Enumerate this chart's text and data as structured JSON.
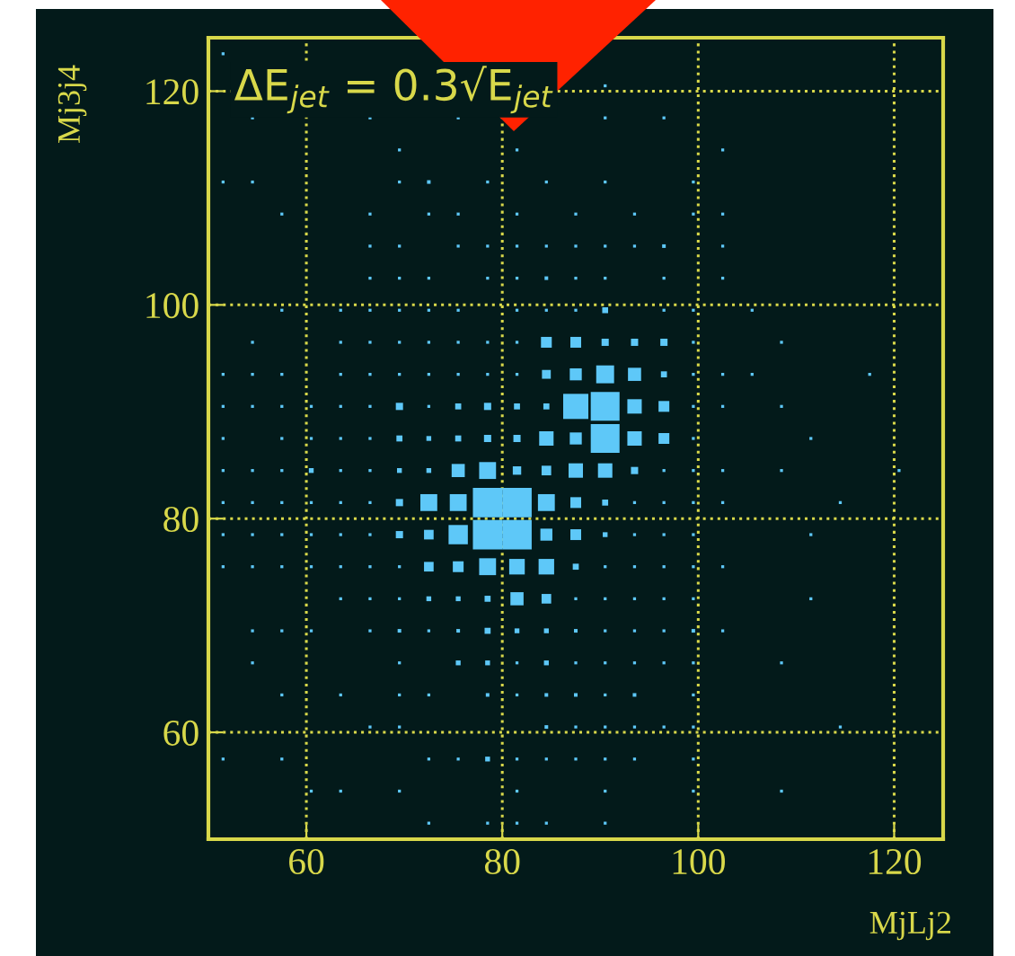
{
  "chart_data": {
    "type": "bubble",
    "title": "ΔE$_{jet}$ = 0.3√E$_{jet}$",
    "xlabel": "MjLj2",
    "ylabel": "Mj3j4",
    "xlim": [
      50,
      125
    ],
    "ylim": [
      50,
      125
    ],
    "xticks": [
      60,
      80,
      100,
      120
    ],
    "yticks": [
      60,
      80,
      100,
      120
    ],
    "grid": true,
    "marker": "square",
    "color": "#5ec8f8",
    "series": [
      {
        "x": [
          51.5
        ],
        "values": [
          123.5
        ],
        "sizes": [
          0.01
        ]
      },
      {
        "x": [
          90.5
        ],
        "values": [
          120.5
        ],
        "sizes": [
          0.01
        ]
      },
      {
        "x": [
          54.5,
          66.5,
          75.5,
          90.5,
          96.5
        ],
        "values": [
          117.5,
          117.5,
          117.5,
          117.5,
          117.5
        ],
        "sizes": [
          0.01,
          0.01,
          0.01,
          0.01,
          0.01
        ]
      },
      {
        "x": [
          69.5,
          81.5,
          102.5
        ],
        "values": [
          114.5,
          114.5,
          114.5
        ],
        "sizes": [
          0.01,
          0.01,
          0.01
        ]
      },
      {
        "x": [
          51.5,
          54.5,
          69.5,
          72.5,
          78.5,
          84.5,
          90.5,
          99.5
        ],
        "values": [
          111.5,
          111.5,
          111.5,
          111.5,
          111.5,
          111.5,
          111.5,
          111.5
        ],
        "sizes": [
          0.01,
          0.01,
          0.01,
          0.015,
          0.01,
          0.01,
          0.01,
          0.01
        ]
      },
      {
        "x": [
          57.5,
          66.5,
          72.5,
          75.5,
          81.5,
          87.5,
          93.5,
          99.5,
          102.5
        ],
        "values": [
          108.5,
          108.5,
          108.5,
          108.5,
          108.5,
          108.5,
          108.5,
          108.5,
          108.5
        ],
        "sizes": [
          0.01,
          0.01,
          0.01,
          0.01,
          0.01,
          0.01,
          0.01,
          0.01,
          0.01
        ]
      },
      {
        "x": [
          66.5,
          69.5,
          75.5,
          78.5,
          81.5,
          84.5,
          87.5,
          90.5,
          93.5,
          96.5,
          102.5
        ],
        "values": [
          105.5,
          105.5,
          105.5,
          105.5,
          105.5,
          105.5,
          105.5,
          105.5,
          105.5,
          105.5,
          105.5
        ],
        "sizes": [
          0.01,
          0.01,
          0.01,
          0.01,
          0.01,
          0.01,
          0.01,
          0.01,
          0.01,
          0.015,
          0.01
        ]
      },
      {
        "x": [
          66.5,
          69.5,
          72.5,
          78.5,
          81.5,
          84.5,
          87.5,
          90.5,
          96.5,
          102.5
        ],
        "values": [
          102.5,
          102.5,
          102.5,
          102.5,
          102.5,
          102.5,
          102.5,
          102.5,
          102.5,
          102.5
        ],
        "sizes": [
          0.01,
          0.01,
          0.01,
          0.01,
          0.01,
          0.015,
          0.01,
          0.01,
          0.01,
          0.01
        ]
      },
      {
        "x": [
          57.5,
          63.5,
          66.5,
          69.5,
          72.5,
          75.5,
          81.5,
          84.5,
          87.5,
          90.5,
          96.5,
          99.5,
          105.5
        ],
        "values": [
          99.5,
          99.5,
          99.5,
          99.5,
          99.5,
          99.5,
          99.5,
          99.5,
          99.5,
          99.5,
          99.5,
          99.5,
          99.5
        ],
        "sizes": [
          0.01,
          0.01,
          0.01,
          0.01,
          0.01,
          0.01,
          0.01,
          0.01,
          0.01,
          0.04,
          0.01,
          0.01,
          0.01
        ]
      },
      {
        "x": [
          54.5,
          63.5,
          66.5,
          69.5,
          72.5,
          75.5,
          78.5,
          81.5,
          84.5,
          87.5,
          90.5,
          93.5,
          96.5,
          99.5,
          108.5
        ],
        "values": [
          96.5,
          96.5,
          96.5,
          96.5,
          96.5,
          96.5,
          96.5,
          96.5,
          96.5,
          96.5,
          96.5,
          96.5,
          96.5,
          96.5,
          96.5
        ],
        "sizes": [
          0.01,
          0.01,
          0.01,
          0.01,
          0.01,
          0.01,
          0.01,
          0.01,
          0.135,
          0.135,
          0.06,
          0.06,
          0.06,
          0.01,
          0.01
        ]
      },
      {
        "x": [
          51.5,
          54.5,
          57.5,
          63.5,
          66.5,
          69.5,
          72.5,
          75.5,
          78.5,
          81.5,
          84.5,
          87.5,
          90.5,
          93.5,
          96.5,
          99.5,
          102.5,
          105.5,
          117.5
        ],
        "values": [
          93.5,
          93.5,
          93.5,
          93.5,
          93.5,
          93.5,
          93.5,
          93.5,
          93.5,
          93.5,
          93.5,
          93.5,
          93.5,
          93.5,
          93.5,
          93.5,
          93.5,
          93.5,
          93.5
        ],
        "sizes": [
          0.01,
          0.01,
          0.01,
          0.01,
          0.01,
          0.01,
          0.01,
          0.01,
          0.01,
          0.01,
          0.09,
          0.167,
          0.37,
          0.2,
          0.042,
          0.01,
          0.01,
          0.01,
          0.01
        ]
      },
      {
        "x": [
          51.5,
          54.5,
          57.5,
          60.5,
          63.5,
          66.5,
          69.5,
          72.5,
          75.5,
          78.5,
          81.5,
          84.5,
          87.5,
          90.5,
          93.5,
          96.5,
          99.5,
          102.5,
          108.5
        ],
        "values": [
          90.5,
          90.5,
          90.5,
          90.5,
          90.5,
          90.5,
          90.5,
          90.5,
          90.5,
          90.5,
          90.5,
          90.5,
          90.5,
          90.5,
          90.5,
          90.5,
          90.5,
          90.5,
          90.5
        ],
        "sizes": [
          0.01,
          0.01,
          0.01,
          0.01,
          0.01,
          0.01,
          0.06,
          0.01,
          0.042,
          0.06,
          0.042,
          0.042,
          0.73,
          0.96,
          0.24,
          0.135,
          0.01,
          0.01,
          0.01
        ]
      },
      {
        "x": [
          51.5,
          57.5,
          60.5,
          63.5,
          66.5,
          69.5,
          72.5,
          75.5,
          78.5,
          81.5,
          84.5,
          87.5,
          90.5,
          93.5,
          96.5,
          99.5,
          111.5
        ],
        "values": [
          87.5,
          87.5,
          87.5,
          87.5,
          87.5,
          87.5,
          87.5,
          87.5,
          87.5,
          87.5,
          87.5,
          87.5,
          87.5,
          87.5,
          87.5,
          87.5,
          87.5
        ],
        "sizes": [
          0.01,
          0.01,
          0.01,
          0.01,
          0.01,
          0.042,
          0.027,
          0.042,
          0.06,
          0.06,
          0.24,
          0.167,
          0.96,
          0.24,
          0.135,
          0.01,
          0.01
        ]
      },
      {
        "x": [
          51.5,
          54.5,
          57.5,
          60.5,
          63.5,
          66.5,
          69.5,
          72.5,
          75.5,
          78.5,
          81.5,
          84.5,
          87.5,
          90.5,
          93.5,
          96.5,
          99.5,
          102.5,
          108.5,
          120.5
        ],
        "values": [
          84.5,
          84.5,
          84.5,
          84.5,
          84.5,
          84.5,
          84.5,
          84.5,
          84.5,
          84.5,
          84.5,
          84.5,
          84.5,
          84.5,
          84.5,
          84.5,
          84.5,
          84.5,
          84.5,
          84.5
        ],
        "sizes": [
          0.01,
          0.01,
          0.01,
          0.027,
          0.01,
          0.01,
          0.027,
          0.027,
          0.2,
          0.33,
          0.082,
          0.107,
          0.24,
          0.24,
          0.06,
          0.01,
          0.01,
          0.01,
          0.01,
          0.01
        ]
      },
      {
        "x": [
          51.5,
          54.5,
          57.5,
          60.5,
          63.5,
          66.5,
          69.5,
          72.5,
          75.5,
          78.5,
          81.5,
          84.5,
          87.5,
          90.5,
          93.5,
          96.5,
          99.5,
          102.5,
          114.5
        ],
        "values": [
          81.5,
          81.5,
          81.5,
          81.5,
          81.5,
          81.5,
          81.5,
          81.5,
          81.5,
          81.5,
          81.5,
          81.5,
          81.5,
          81.5,
          81.5,
          81.5,
          81.5,
          81.5,
          81.5
        ],
        "sizes": [
          0.01,
          0.01,
          0.01,
          0.01,
          0.01,
          0.01,
          0.06,
          0.33,
          0.33,
          1,
          1,
          0.33,
          0.135,
          0.042,
          0.01,
          0.01,
          0.01,
          0.01,
          0.01
        ]
      },
      {
        "x": [
          51.5,
          54.5,
          57.5,
          60.5,
          63.5,
          66.5,
          69.5,
          72.5,
          75.5,
          78.5,
          81.5,
          84.5,
          87.5,
          90.5,
          93.5,
          96.5,
          99.5,
          111.5
        ],
        "values": [
          78.5,
          78.5,
          78.5,
          78.5,
          78.5,
          78.5,
          78.5,
          78.5,
          78.5,
          78.5,
          78.5,
          78.5,
          78.5,
          78.5,
          78.5,
          78.5,
          78.5,
          78.5
        ],
        "sizes": [
          0.01,
          0.01,
          0.01,
          0.01,
          0.01,
          0.01,
          0.06,
          0.107,
          0.43,
          1,
          1,
          0.167,
          0.135,
          0.027,
          0.01,
          0.01,
          0.01,
          0.01
        ]
      },
      {
        "x": [
          51.5,
          54.5,
          57.5,
          60.5,
          63.5,
          66.5,
          69.5,
          72.5,
          75.5,
          78.5,
          81.5,
          84.5,
          87.5,
          90.5,
          93.5,
          96.5,
          99.5,
          102.5
        ],
        "values": [
          75.5,
          75.5,
          75.5,
          75.5,
          75.5,
          75.5,
          75.5,
          75.5,
          75.5,
          75.5,
          75.5,
          75.5,
          75.5,
          75.5,
          75.5,
          75.5,
          75.5,
          75.5
        ],
        "sizes": [
          0.01,
          0.01,
          0.01,
          0.01,
          0.01,
          0.01,
          0.01,
          0.107,
          0.135,
          0.33,
          0.28,
          0.28,
          0.042,
          0.01,
          0.01,
          0.01,
          0.01,
          0.01
        ]
      },
      {
        "x": [
          63.5,
          66.5,
          69.5,
          72.5,
          75.5,
          78.5,
          81.5,
          84.5,
          87.5,
          90.5,
          93.5,
          96.5,
          99.5,
          111.5
        ],
        "values": [
          72.5,
          72.5,
          72.5,
          72.5,
          72.5,
          72.5,
          72.5,
          72.5,
          72.5,
          72.5,
          72.5,
          72.5,
          72.5,
          72.5
        ],
        "sizes": [
          0.01,
          0.01,
          0.01,
          0.027,
          0.027,
          0.042,
          0.2,
          0.107,
          0.01,
          0.01,
          0.01,
          0.01,
          0.01,
          0.01
        ]
      },
      {
        "x": [
          54.5,
          57.5,
          60.5,
          66.5,
          69.5,
          72.5,
          75.5,
          78.5,
          81.5,
          84.5,
          87.5,
          90.5,
          93.5,
          96.5,
          99.5,
          102.5
        ],
        "values": [
          69.5,
          69.5,
          69.5,
          69.5,
          69.5,
          69.5,
          69.5,
          69.5,
          69.5,
          69.5,
          69.5,
          69.5,
          69.5,
          69.5,
          69.5,
          69.5
        ],
        "sizes": [
          0.01,
          0.01,
          0.01,
          0.01,
          0.015,
          0.01,
          0.015,
          0.042,
          0.027,
          0.027,
          0.015,
          0.01,
          0.01,
          0.01,
          0.015,
          0.01
        ]
      },
      {
        "x": [
          54.5,
          69.5,
          75.5,
          78.5,
          81.5,
          84.5,
          87.5,
          90.5,
          93.5,
          96.5,
          99.5,
          108.5
        ],
        "values": [
          66.5,
          66.5,
          66.5,
          66.5,
          66.5,
          66.5,
          66.5,
          66.5,
          66.5,
          66.5,
          66.5,
          66.5
        ],
        "sizes": [
          0.01,
          0.01,
          0.027,
          0.027,
          0.01,
          0.027,
          0.01,
          0.01,
          0.01,
          0.01,
          0.01,
          0.01
        ]
      },
      {
        "x": [
          57.5,
          63.5,
          69.5,
          72.5,
          78.5,
          81.5,
          84.5,
          87.5,
          90.5,
          93.5,
          99.5
        ],
        "values": [
          63.5,
          63.5,
          63.5,
          63.5,
          63.5,
          63.5,
          63.5,
          63.5,
          63.5,
          63.5,
          63.5
        ],
        "sizes": [
          0.01,
          0.01,
          0.01,
          0.01,
          0.015,
          0.01,
          0.015,
          0.015,
          0.01,
          0.015,
          0.01
        ]
      },
      {
        "x": [
          66.5,
          69.5,
          84.5,
          87.5,
          90.5,
          93.5,
          96.5,
          99.5,
          114.5
        ],
        "values": [
          60.5,
          60.5,
          60.5,
          60.5,
          60.5,
          60.5,
          60.5,
          60.5,
          60.5
        ],
        "sizes": [
          0.01,
          0.01,
          0.015,
          0.01,
          0.01,
          0.01,
          0.01,
          0.01,
          0.01
        ]
      },
      {
        "x": [
          51.5,
          57.5,
          72.5,
          75.5,
          78.5,
          81.5,
          84.5,
          87.5,
          90.5,
          93.5,
          99.5
        ],
        "values": [
          57.5,
          57.5,
          57.5,
          57.5,
          57.5,
          57.5,
          57.5,
          57.5,
          57.5,
          57.5,
          57.5
        ],
        "sizes": [
          0.01,
          0.01,
          0.01,
          0.01,
          0.027,
          0.01,
          0.01,
          0.01,
          0.01,
          0.01,
          0.01
        ]
      },
      {
        "x": [
          60.5,
          63.5,
          69.5,
          81.5,
          90.5,
          99.5,
          108.5
        ],
        "values": [
          54.5,
          54.5,
          54.5,
          54.5,
          54.5,
          54.5,
          54.5
        ],
        "sizes": [
          0.01,
          0.01,
          0.01,
          0.01,
          0.01,
          0.01,
          0.01
        ]
      },
      {
        "x": [
          72.5,
          78.5,
          81.5,
          84.5,
          90.5
        ],
        "values": [
          51.5,
          51.5,
          51.5,
          51.5,
          51.5
        ],
        "sizes": [
          0.01,
          0.01,
          0.01,
          0.01,
          0.01
        ]
      }
    ]
  }
}
